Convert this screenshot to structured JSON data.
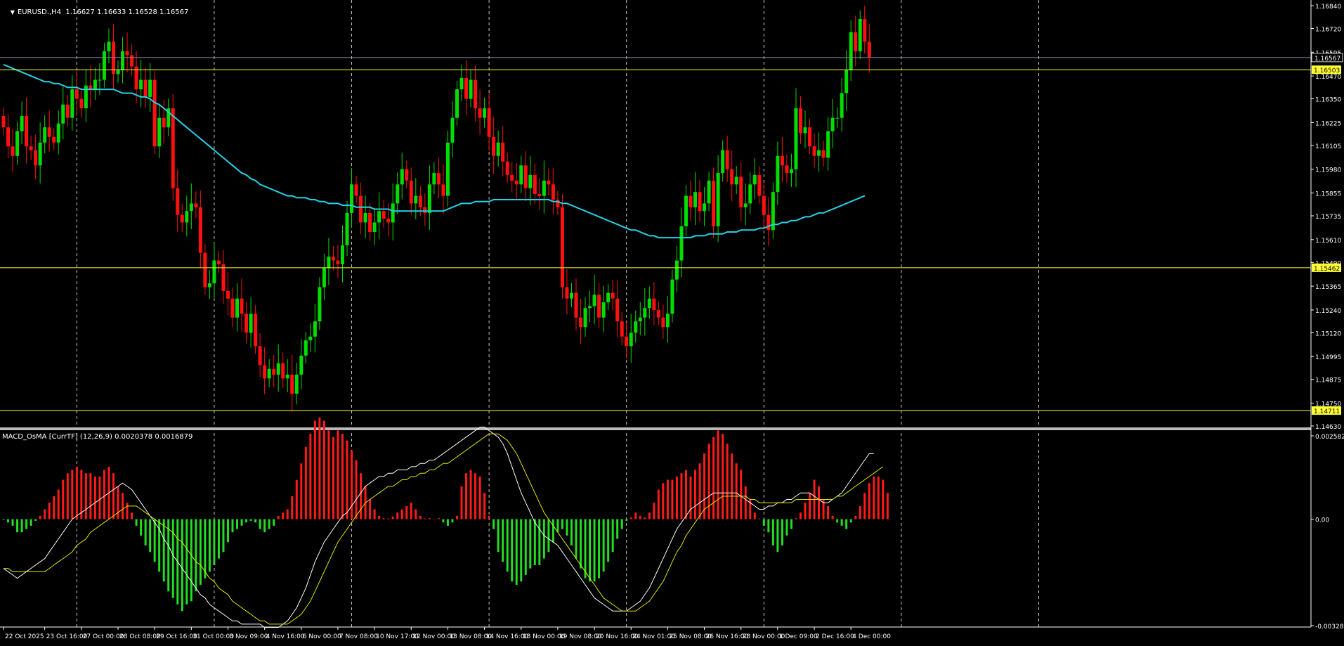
{
  "window": {
    "symbol_line": "EURUSD.,H4  1.16627 1.16633 1.16528 1.16567",
    "dropdown_icon": "triangle-down-icon"
  },
  "indicator": {
    "label": "MACD_OsMA [CurrTF] (12,26,9) 0.0020378 0.0016879"
  },
  "colors": {
    "background": "#000000",
    "bull_candle": "#00dd00",
    "bear_candle": "#ff1010",
    "moving_average": "#22d3e6",
    "hline": "#ffff33",
    "grid": "#c8c8c8",
    "macd_line": "#ffffff",
    "signal_line": "#e6e600",
    "hist_up": "#ff1a1a",
    "hist_down": "#22dd22"
  },
  "chart_data": [
    {
      "type": "candlestick",
      "title": "EURUSD.,H4",
      "ylim": [
        1.1463,
        1.1684
      ],
      "price_ticks": [
        "1.16840",
        "1.16720",
        "1.16595",
        "1.16470",
        "1.16350",
        "1.16225",
        "1.16105",
        "1.15980",
        "1.15855",
        "1.15735",
        "1.15610",
        "1.15490",
        "1.15365",
        "1.15240",
        "1.15120",
        "1.14995",
        "1.14875",
        "1.14750",
        "1.14630"
      ],
      "price_tick_values": [
        1.1684,
        1.1672,
        1.16595,
        1.1647,
        1.1635,
        1.16225,
        1.16105,
        1.1598,
        1.15855,
        1.15735,
        1.1561,
        1.1549,
        1.15365,
        1.1524,
        1.1512,
        1.14995,
        1.14875,
        1.1475,
        1.1463
      ],
      "current_price": {
        "value": 1.16567,
        "label": "1.16567"
      },
      "horizontal_lines": [
        {
          "value": 1.16503,
          "label": "1.16503"
        },
        {
          "value": 1.15462,
          "label": "1.15462"
        },
        {
          "value": 1.14711,
          "label": "1.14711"
        }
      ],
      "time_labels": [
        "22 Oct 2025",
        "23 Oct 16:00",
        "27 Oct 00:00",
        "28 Oct 08:00",
        "29 Oct 16:00",
        "31 Oct 00:00",
        "3 Nov 09:00",
        "4 Nov 16:00",
        "6 Nov 00:00",
        "7 Nov 08:00",
        "10 Nov 17:00",
        "12 Nov 00:00",
        "13 Nov 08:00",
        "14 Nov 16:00",
        "18 Nov 00:00",
        "19 Nov 08:00",
        "20 Nov 16:00",
        "24 Nov 01:00",
        "25 Nov 08:00",
        "26 Nov 16:00",
        "28 Nov 00:00",
        "1 Dec 09:00",
        "2 Dec 16:00",
        "4 Dec 00:00"
      ],
      "time_label_bars": [
        0,
        9,
        17,
        25,
        33,
        41,
        49,
        57,
        65,
        73,
        81,
        89,
        97,
        105,
        113,
        121,
        129,
        137,
        145,
        153,
        161,
        169,
        177,
        185
      ],
      "grid_bars": [
        16,
        46,
        76,
        106,
        136,
        166,
        196,
        226
      ],
      "close": [
        1.162,
        1.161,
        1.1605,
        1.1618,
        1.1626,
        1.161,
        1.1608,
        1.16,
        1.1612,
        1.162,
        1.1615,
        1.1612,
        1.1622,
        1.1632,
        1.1625,
        1.164,
        1.1635,
        1.163,
        1.1642,
        1.164,
        1.1645,
        1.1645,
        1.166,
        1.1665,
        1.1648,
        1.165,
        1.166,
        1.1658,
        1.1652,
        1.164,
        1.1645,
        1.1636,
        1.1645,
        1.161,
        1.1625,
        1.162,
        1.163,
        1.1588,
        1.1574,
        1.157,
        1.1576,
        1.158,
        1.1578,
        1.1554,
        1.1536,
        1.1538,
        1.155,
        1.1548,
        1.1534,
        1.153,
        1.152,
        1.153,
        1.1522,
        1.1512,
        1.1522,
        1.1505,
        1.1495,
        1.1488,
        1.1493,
        1.149,
        1.1496,
        1.1488,
        1.149,
        1.148,
        1.149,
        1.15,
        1.1508,
        1.151,
        1.1518,
        1.1536,
        1.1546,
        1.1552,
        1.155,
        1.1548,
        1.1558,
        1.1575,
        1.159,
        1.1584,
        1.157,
        1.1575,
        1.1565,
        1.157,
        1.1576,
        1.1572,
        1.157,
        1.158,
        1.159,
        1.1598,
        1.1592,
        1.158,
        1.1584,
        1.1578,
        1.1575,
        1.159,
        1.1596,
        1.159,
        1.1584,
        1.1612,
        1.1625,
        1.164,
        1.1646,
        1.1635,
        1.1645,
        1.163,
        1.1625,
        1.163,
        1.1615,
        1.1605,
        1.1612,
        1.1602,
        1.1595,
        1.1592,
        1.159,
        1.16,
        1.1588,
        1.1595,
        1.1585,
        1.1584,
        1.1592,
        1.159,
        1.1582,
        1.1578,
        1.1536,
        1.153,
        1.1533,
        1.152,
        1.1515,
        1.1525,
        1.1526,
        1.1532,
        1.152,
        1.1528,
        1.1533,
        1.153,
        1.1518,
        1.151,
        1.1505,
        1.1512,
        1.1518,
        1.152,
        1.1525,
        1.153,
        1.1524,
        1.152,
        1.1515,
        1.1522,
        1.154,
        1.155,
        1.1568,
        1.1584,
        1.1578,
        1.1586,
        1.1576,
        1.158,
        1.1592,
        1.1568,
        1.1596,
        1.1608,
        1.1598,
        1.159,
        1.1594,
        1.1578,
        1.158,
        1.159,
        1.1595,
        1.1584,
        1.1574,
        1.1566,
        1.1586,
        1.1605,
        1.16,
        1.1596,
        1.1598,
        1.163,
        1.1617,
        1.162,
        1.161,
        1.1605,
        1.1608,
        1.1604,
        1.1618,
        1.1625,
        1.1625,
        1.1638,
        1.165,
        1.167,
        1.166,
        1.1677,
        1.1665,
        1.1657
      ]
    },
    {
      "type": "line",
      "title": "Moving average",
      "values": [
        1.1653,
        1.1652,
        1.1651,
        1.165,
        1.1649,
        1.1648,
        1.1647,
        1.1646,
        1.1645,
        1.1644,
        1.1644,
        1.1643,
        1.1643,
        1.1642,
        1.1641,
        1.1641,
        1.1641,
        1.164,
        1.164,
        1.164,
        1.164,
        1.164,
        1.164,
        1.164,
        1.164,
        1.1639,
        1.1638,
        1.1638,
        1.1638,
        1.1637,
        1.1636,
        1.1636,
        1.1635,
        1.1633,
        1.1632,
        1.163,
        1.1628,
        1.1626,
        1.1624,
        1.1622,
        1.162,
        1.1618,
        1.1616,
        1.1614,
        1.1612,
        1.161,
        1.1608,
        1.1606,
        1.1604,
        1.1602,
        1.16,
        1.1598,
        1.1596,
        1.1595,
        1.1593,
        1.1592,
        1.159,
        1.1589,
        1.1588,
        1.1587,
        1.1586,
        1.1585,
        1.1584,
        1.1584,
        1.1583,
        1.1583,
        1.1583,
        1.1582,
        1.1582,
        1.1581,
        1.1581,
        1.158,
        1.158,
        1.158,
        1.1579,
        1.1579,
        1.1579,
        1.1578,
        1.1578,
        1.1578,
        1.1578,
        1.1577,
        1.1577,
        1.1577,
        1.1577,
        1.1576,
        1.1576,
        1.1576,
        1.1576,
        1.1576,
        1.1576,
        1.1576,
        1.1576,
        1.1576,
        1.1576,
        1.1576,
        1.1576,
        1.1577,
        1.1578,
        1.1579,
        1.158,
        1.158,
        1.158,
        1.1581,
        1.1581,
        1.1581,
        1.1581,
        1.1582,
        1.1582,
        1.1582,
        1.1582,
        1.1582,
        1.1582,
        1.1582,
        1.1582,
        1.1582,
        1.1582,
        1.1582,
        1.1582,
        1.1582,
        1.1581,
        1.1581,
        1.158,
        1.158,
        1.1579,
        1.1578,
        1.1577,
        1.1576,
        1.1575,
        1.1574,
        1.1573,
        1.1572,
        1.1571,
        1.157,
        1.1569,
        1.1568,
        1.1567,
        1.1566,
        1.1566,
        1.1565,
        1.1564,
        1.1563,
        1.1563,
        1.1562,
        1.1562,
        1.1562,
        1.1562,
        1.1562,
        1.1562,
        1.1562,
        1.1562,
        1.1563,
        1.1563,
        1.1563,
        1.1564,
        1.1564,
        1.1564,
        1.1564,
        1.1565,
        1.1565,
        1.1565,
        1.1566,
        1.1566,
        1.1566,
        1.1566,
        1.1567,
        1.1567,
        1.1568,
        1.1569,
        1.1569,
        1.157,
        1.157,
        1.1571,
        1.1571,
        1.1572,
        1.1573,
        1.1573,
        1.1574,
        1.1575,
        1.1575,
        1.1576,
        1.1577,
        1.1578,
        1.1579,
        1.158,
        1.1581,
        1.1582,
        1.1583,
        1.1584
      ]
    },
    {
      "type": "bar",
      "title": "MACD_OsMA [CurrTF] (12,26,9)",
      "ylim": [
        -0.003287,
        0.0025823
      ],
      "axis_labels": [
        {
          "value": 0.0025823,
          "label": "0.0025823"
        },
        {
          "value": 0,
          "label": "0.00"
        },
        {
          "value": -0.003287,
          "label": "-0.003287"
        }
      ],
      "histogram": [
        -2e-05,
        -0.0001,
        -0.0002,
        -0.0004,
        -0.0004,
        -0.0003,
        -0.0002,
        -5e-05,
        0.0001,
        0.0003,
        0.0005,
        0.0007,
        0.0009,
        0.0012,
        0.0014,
        0.0015,
        0.0016,
        0.0015,
        0.0014,
        0.0014,
        0.0013,
        0.0013,
        0.0015,
        0.0016,
        0.0014,
        0.001,
        0.0008,
        0.0005,
        0.0002,
        -0.0002,
        -0.0005,
        -0.0008,
        -0.001,
        -0.0013,
        -0.0016,
        -0.0019,
        -0.0022,
        -0.0024,
        -0.0026,
        -0.0028,
        -0.0026,
        -0.0025,
        -0.0022,
        -0.002,
        -0.0018,
        -0.0016,
        -0.0014,
        -0.0012,
        -0.001,
        -0.0007,
        -0.0004,
        -0.0003,
        -0.0002,
        -0.0001,
        -5e-05,
        -0.0001,
        -0.0003,
        -0.0004,
        -0.0003,
        -0.0002,
        0.0001,
        0.0002,
        0.0003,
        0.0007,
        0.0012,
        0.0017,
        0.0022,
        0.0026,
        0.003,
        0.0031,
        0.003,
        0.0027,
        0.0025,
        0.0027,
        0.0026,
        0.0024,
        0.0021,
        0.0018,
        0.0014,
        0.001,
        0.0006,
        0.0003,
        0.0001,
        3e-05,
        2e-05,
        8e-05,
        0.0002,
        0.0003,
        0.0004,
        0.0005,
        0.0003,
        0.0001,
        2e-05,
        3e-05,
        1e-05,
        3e-05,
        -0.0001,
        -0.0002,
        -0.0001,
        0.0001,
        0.001,
        0.0014,
        0.0015,
        0.0014,
        0.0013,
        0.0008,
        0.0001,
        -0.0003,
        -0.001,
        -0.0013,
        -0.0016,
        -0.0019,
        -0.002,
        -0.0019,
        -0.0017,
        -0.0015,
        -0.0014,
        -0.0014,
        -0.0012,
        -0.001,
        -0.0007,
        -0.0004,
        -0.0003,
        -0.0005,
        -0.0008,
        -0.0012,
        -0.0015,
        -0.0018,
        -0.0019,
        -0.0019,
        -0.0018,
        -0.0016,
        -0.0013,
        -0.001,
        -0.0006,
        -0.0003,
        -5e-05,
        5e-05,
        0.0002,
        0.0001,
        5e-05,
        0.0002,
        0.0005,
        0.0009,
        0.0011,
        0.0012,
        0.0012,
        0.0013,
        0.0014,
        0.0015,
        0.0013,
        0.0015,
        0.0017,
        0.002,
        0.0023,
        0.0025,
        0.0027,
        0.0026,
        0.0023,
        0.002,
        0.0017,
        0.0015,
        0.001,
        0.0006,
        0.0002,
        2e-05,
        -0.0002,
        -0.0004,
        -0.0008,
        -0.001,
        -0.0008,
        -0.0005,
        -0.0003,
        3e-05,
        0.0002,
        0.0005,
        0.0008,
        0.0012,
        0.001,
        0.0006,
        0.0004,
        0.0001,
        -0.0001,
        -0.0002,
        -0.0003,
        -0.0001,
        0.0001,
        0.0004,
        0.0008,
        0.0011,
        0.0013,
        0.0013,
        0.0012,
        0.0008
      ],
      "macd": [
        -0.0015,
        -0.0016,
        -0.0017,
        -0.0018,
        -0.0017,
        -0.0016,
        -0.0015,
        -0.0014,
        -0.0013,
        -0.0012,
        -0.001,
        -0.0008,
        -0.0006,
        -0.0004,
        -0.0002,
        0.0,
        0.0001,
        0.0002,
        0.0003,
        0.0004,
        0.0005,
        0.0006,
        0.0007,
        0.0008,
        0.0009,
        0.001,
        0.0011,
        0.001,
        0.0009,
        0.0007,
        0.0005,
        0.0003,
        0.0001,
        -0.0001,
        -0.0003,
        -0.0006,
        -0.0008,
        -0.0011,
        -0.0013,
        -0.0015,
        -0.0017,
        -0.0019,
        -0.0021,
        -0.0023,
        -0.0024,
        -0.0026,
        -0.0027,
        -0.0028,
        -0.0029,
        -0.003,
        -0.0031,
        -0.0031,
        -0.0032,
        -0.0032,
        -0.0032,
        -0.0032,
        -0.0032,
        -0.0033,
        -0.0033,
        -0.0033,
        -0.0033,
        -0.0032,
        -0.0031,
        -0.0029,
        -0.0027,
        -0.0024,
        -0.0021,
        -0.0017,
        -0.0013,
        -0.001,
        -0.0007,
        -0.0005,
        -0.0003,
        -0.0001,
        0.0001,
        0.0002,
        0.0004,
        0.0006,
        0.0008,
        0.001,
        0.0011,
        0.0012,
        0.0013,
        0.0013,
        0.0014,
        0.0014,
        0.0015,
        0.0015,
        0.0015,
        0.0016,
        0.0016,
        0.0017,
        0.0017,
        0.0018,
        0.0018,
        0.0019,
        0.002,
        0.0021,
        0.0022,
        0.0023,
        0.0024,
        0.0025,
        0.0026,
        0.0027,
        0.0028,
        0.0028,
        0.0027,
        0.0026,
        0.0025,
        0.0023,
        0.002,
        0.0016,
        0.0012,
        0.0008,
        0.0005,
        0.0002,
        -0.0001,
        -0.0003,
        -0.0005,
        -0.0006,
        -0.0007,
        -0.0008,
        -0.001,
        -0.0012,
        -0.0014,
        -0.0016,
        -0.0018,
        -0.002,
        -0.0022,
        -0.0024,
        -0.0025,
        -0.0026,
        -0.0027,
        -0.0028,
        -0.0028,
        -0.0028,
        -0.0028,
        -0.0027,
        -0.0026,
        -0.0025,
        -0.0023,
        -0.0021,
        -0.0018,
        -0.0015,
        -0.0012,
        -0.0009,
        -0.0006,
        -0.0003,
        -0.0001,
        0.0001,
        0.0003,
        0.0004,
        0.0005,
        0.0006,
        0.0007,
        0.0008,
        0.0008,
        0.0008,
        0.0008,
        0.0008,
        0.0008,
        0.0007,
        0.0006,
        0.0005,
        0.0004,
        0.0003,
        0.0003,
        0.0004,
        0.0004,
        0.0005,
        0.0005,
        0.0006,
        0.0006,
        0.0007,
        0.0008,
        0.0008,
        0.0008,
        0.0007,
        0.0006,
        0.0005,
        0.0005,
        0.0006,
        0.0007,
        0.0008,
        0.001,
        0.0012,
        0.0014,
        0.0016,
        0.0018,
        0.002,
        0.002
      ],
      "signal": [
        -0.0015,
        -0.0015,
        -0.0016,
        -0.0016,
        -0.0016,
        -0.0016,
        -0.0016,
        -0.0016,
        -0.0016,
        -0.0016,
        -0.0015,
        -0.0014,
        -0.0013,
        -0.0012,
        -0.0011,
        -0.001,
        -0.0008,
        -0.0007,
        -0.0006,
        -0.0004,
        -0.0003,
        -0.0002,
        -0.0001,
        0.0,
        0.0001,
        0.0002,
        0.0003,
        0.0004,
        0.0004,
        0.0004,
        0.0003,
        0.0002,
        0.0001,
        0.0,
        -0.0001,
        -0.0002,
        -0.0003,
        -0.0004,
        -0.0006,
        -0.0007,
        -0.0009,
        -0.0011,
        -0.0013,
        -0.0014,
        -0.0016,
        -0.0018,
        -0.0019,
        -0.0021,
        -0.0022,
        -0.0023,
        -0.0025,
        -0.0026,
        -0.0027,
        -0.0028,
        -0.0029,
        -0.003,
        -0.0031,
        -0.0031,
        -0.0032,
        -0.0032,
        -0.0032,
        -0.0032,
        -0.0032,
        -0.0031,
        -0.003,
        -0.0029,
        -0.0027,
        -0.0025,
        -0.0022,
        -0.0019,
        -0.0016,
        -0.0013,
        -0.001,
        -0.0007,
        -0.0005,
        -0.0003,
        -0.0001,
        0.0001,
        0.0003,
        0.0005,
        0.0006,
        0.0007,
        0.0008,
        0.0009,
        0.001,
        0.001,
        0.0011,
        0.0012,
        0.0012,
        0.0013,
        0.0013,
        0.0014,
        0.0014,
        0.0015,
        0.0015,
        0.0016,
        0.0017,
        0.0017,
        0.0018,
        0.0019,
        0.002,
        0.0021,
        0.0022,
        0.0023,
        0.0024,
        0.0025,
        0.0026,
        0.0026,
        0.0026,
        0.0025,
        0.0024,
        0.0022,
        0.002,
        0.0017,
        0.0014,
        0.0011,
        0.0008,
        0.0005,
        0.0002,
        0.0,
        -0.0002,
        -0.0004,
        -0.0006,
        -0.0008,
        -0.001,
        -0.0012,
        -0.0014,
        -0.0016,
        -0.0018,
        -0.002,
        -0.0022,
        -0.0024,
        -0.0025,
        -0.0026,
        -0.0027,
        -0.0028,
        -0.0028,
        -0.0028,
        -0.0028,
        -0.0027,
        -0.0026,
        -0.0025,
        -0.0023,
        -0.0021,
        -0.0019,
        -0.0016,
        -0.0013,
        -0.001,
        -0.0008,
        -0.0005,
        -0.0003,
        -0.0001,
        0.0001,
        0.0003,
        0.0004,
        0.0005,
        0.0006,
        0.0007,
        0.0007,
        0.0007,
        0.0007,
        0.0007,
        0.0007,
        0.0006,
        0.0006,
        0.0005,
        0.0005,
        0.0005,
        0.0005,
        0.0005,
        0.0005,
        0.0005,
        0.0005,
        0.0006,
        0.0006,
        0.0006,
        0.0006,
        0.0006,
        0.0006,
        0.0006,
        0.0006,
        0.0006,
        0.0007,
        0.0007,
        0.0008,
        0.0009,
        0.001,
        0.0011,
        0.0012,
        0.0013,
        0.0014,
        0.0015,
        0.0016
      ]
    }
  ]
}
